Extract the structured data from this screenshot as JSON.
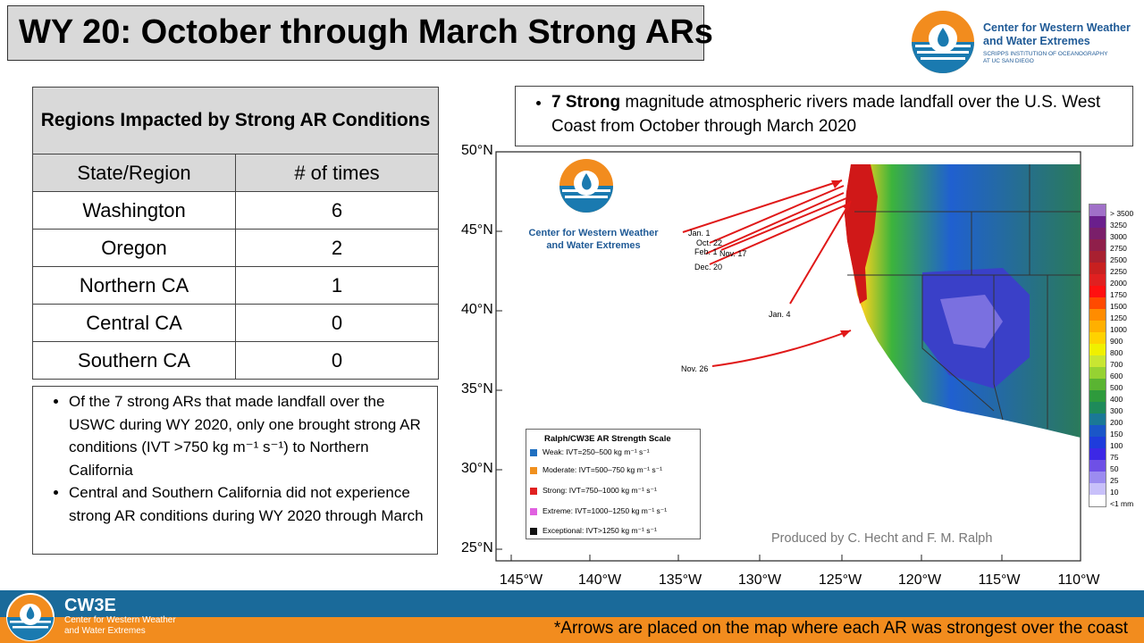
{
  "title": "WY 20: October through March Strong ARs",
  "logo": {
    "line1": "Center for Western Weather",
    "line2": "and Water Extremes",
    "line3": "SCRIPPS INSTITUTION OF OCEANOGRAPHY",
    "line4": "AT UC SAN DIEGO"
  },
  "table": {
    "header": "Regions Impacted by Strong AR Conditions",
    "col1": "State/Region",
    "col2": "# of times",
    "rows": [
      {
        "region": "Washington",
        "count": "6"
      },
      {
        "region": "Oregon",
        "count": "2"
      },
      {
        "region": "Northern CA",
        "count": "1"
      },
      {
        "region": "Central CA",
        "count": "0"
      },
      {
        "region": "Southern CA",
        "count": "0"
      }
    ]
  },
  "notes": [
    "Of the 7 strong ARs that made landfall over the USWC during WY 2020, only one brought strong AR conditions (IVT >750 kg m⁻¹ s⁻¹)  to Northern California",
    "Central and Southern California did not experience strong AR conditions during WY 2020 through March"
  ],
  "summary": {
    "bold": "7 Strong",
    "rest": " magnitude atmospheric rivers made landfall over the U.S. West Coast from October through March 2020"
  },
  "map": {
    "lat_labels": [
      "50°N",
      "45°N",
      "40°N",
      "35°N",
      "30°N",
      "25°N"
    ],
    "lon_labels": [
      "145°W",
      "140°W",
      "135°W",
      "130°W",
      "125°W",
      "120°W",
      "115°W",
      "110°W"
    ],
    "logo_line1": "Center for Western Weather",
    "logo_line2": "and Water Extremes",
    "credit": "Produced by C. Hecht and F. M. Ralph",
    "ar_dates": [
      "Jan. 1",
      "Oct. 22",
      "Feb. 1",
      "Nov. 17",
      "Dec. 20",
      "Jan. 4",
      "Nov. 26"
    ],
    "colorbar_labels": [
      "> 3500",
      "3250",
      "3000",
      "2750",
      "2500",
      "2250",
      "2000",
      "1750",
      "1500",
      "1250",
      "1000",
      "900",
      "800",
      "700",
      "600",
      "500",
      "400",
      "300",
      "200",
      "150",
      "100",
      "75",
      "50",
      "25",
      "10",
      "<1 mm"
    ],
    "colorbar_colors": [
      "#a070c8",
      "#6a1f8c",
      "#7a1f6a",
      "#8f1f4a",
      "#a82030",
      "#c82020",
      "#e02020",
      "#ff1010",
      "#ff4a00",
      "#ff8c00",
      "#ffb000",
      "#ffd200",
      "#f0f000",
      "#c8e632",
      "#96d232",
      "#5ab432",
      "#2e9a3c",
      "#1e8a5a",
      "#1a7896",
      "#1a56c8",
      "#1e3cdc",
      "#3c28e6",
      "#6e50e6",
      "#9c8cf0",
      "#c8c0fa",
      "#ffffff"
    ],
    "legend": {
      "title": "Ralph/CW3E AR Strength Scale",
      "items": [
        {
          "label": "Weak: IVT=250–500 kg m⁻¹ s⁻¹",
          "color": "#1f6fc0"
        },
        {
          "label": "Moderate: IVT=500–750 kg m⁻¹ s⁻¹",
          "color": "#f0901e"
        },
        {
          "label": "Strong: IVT=750–1000 kg m⁻¹ s⁻¹",
          "color": "#e02020"
        },
        {
          "label": "Extreme: IVT=1000–1250 kg m⁻¹ s⁻¹",
          "color": "#e060e0"
        },
        {
          "label": "Exceptional: IVT>1250 kg m⁻¹ s⁻¹",
          "color": "#111111"
        }
      ]
    }
  },
  "footer": {
    "brand": "CW3E",
    "sub1": "Center for Western Weather",
    "sub2": "and Water Extremes",
    "footnote": "*Arrows are placed on the map where each AR was strongest over the coast"
  }
}
